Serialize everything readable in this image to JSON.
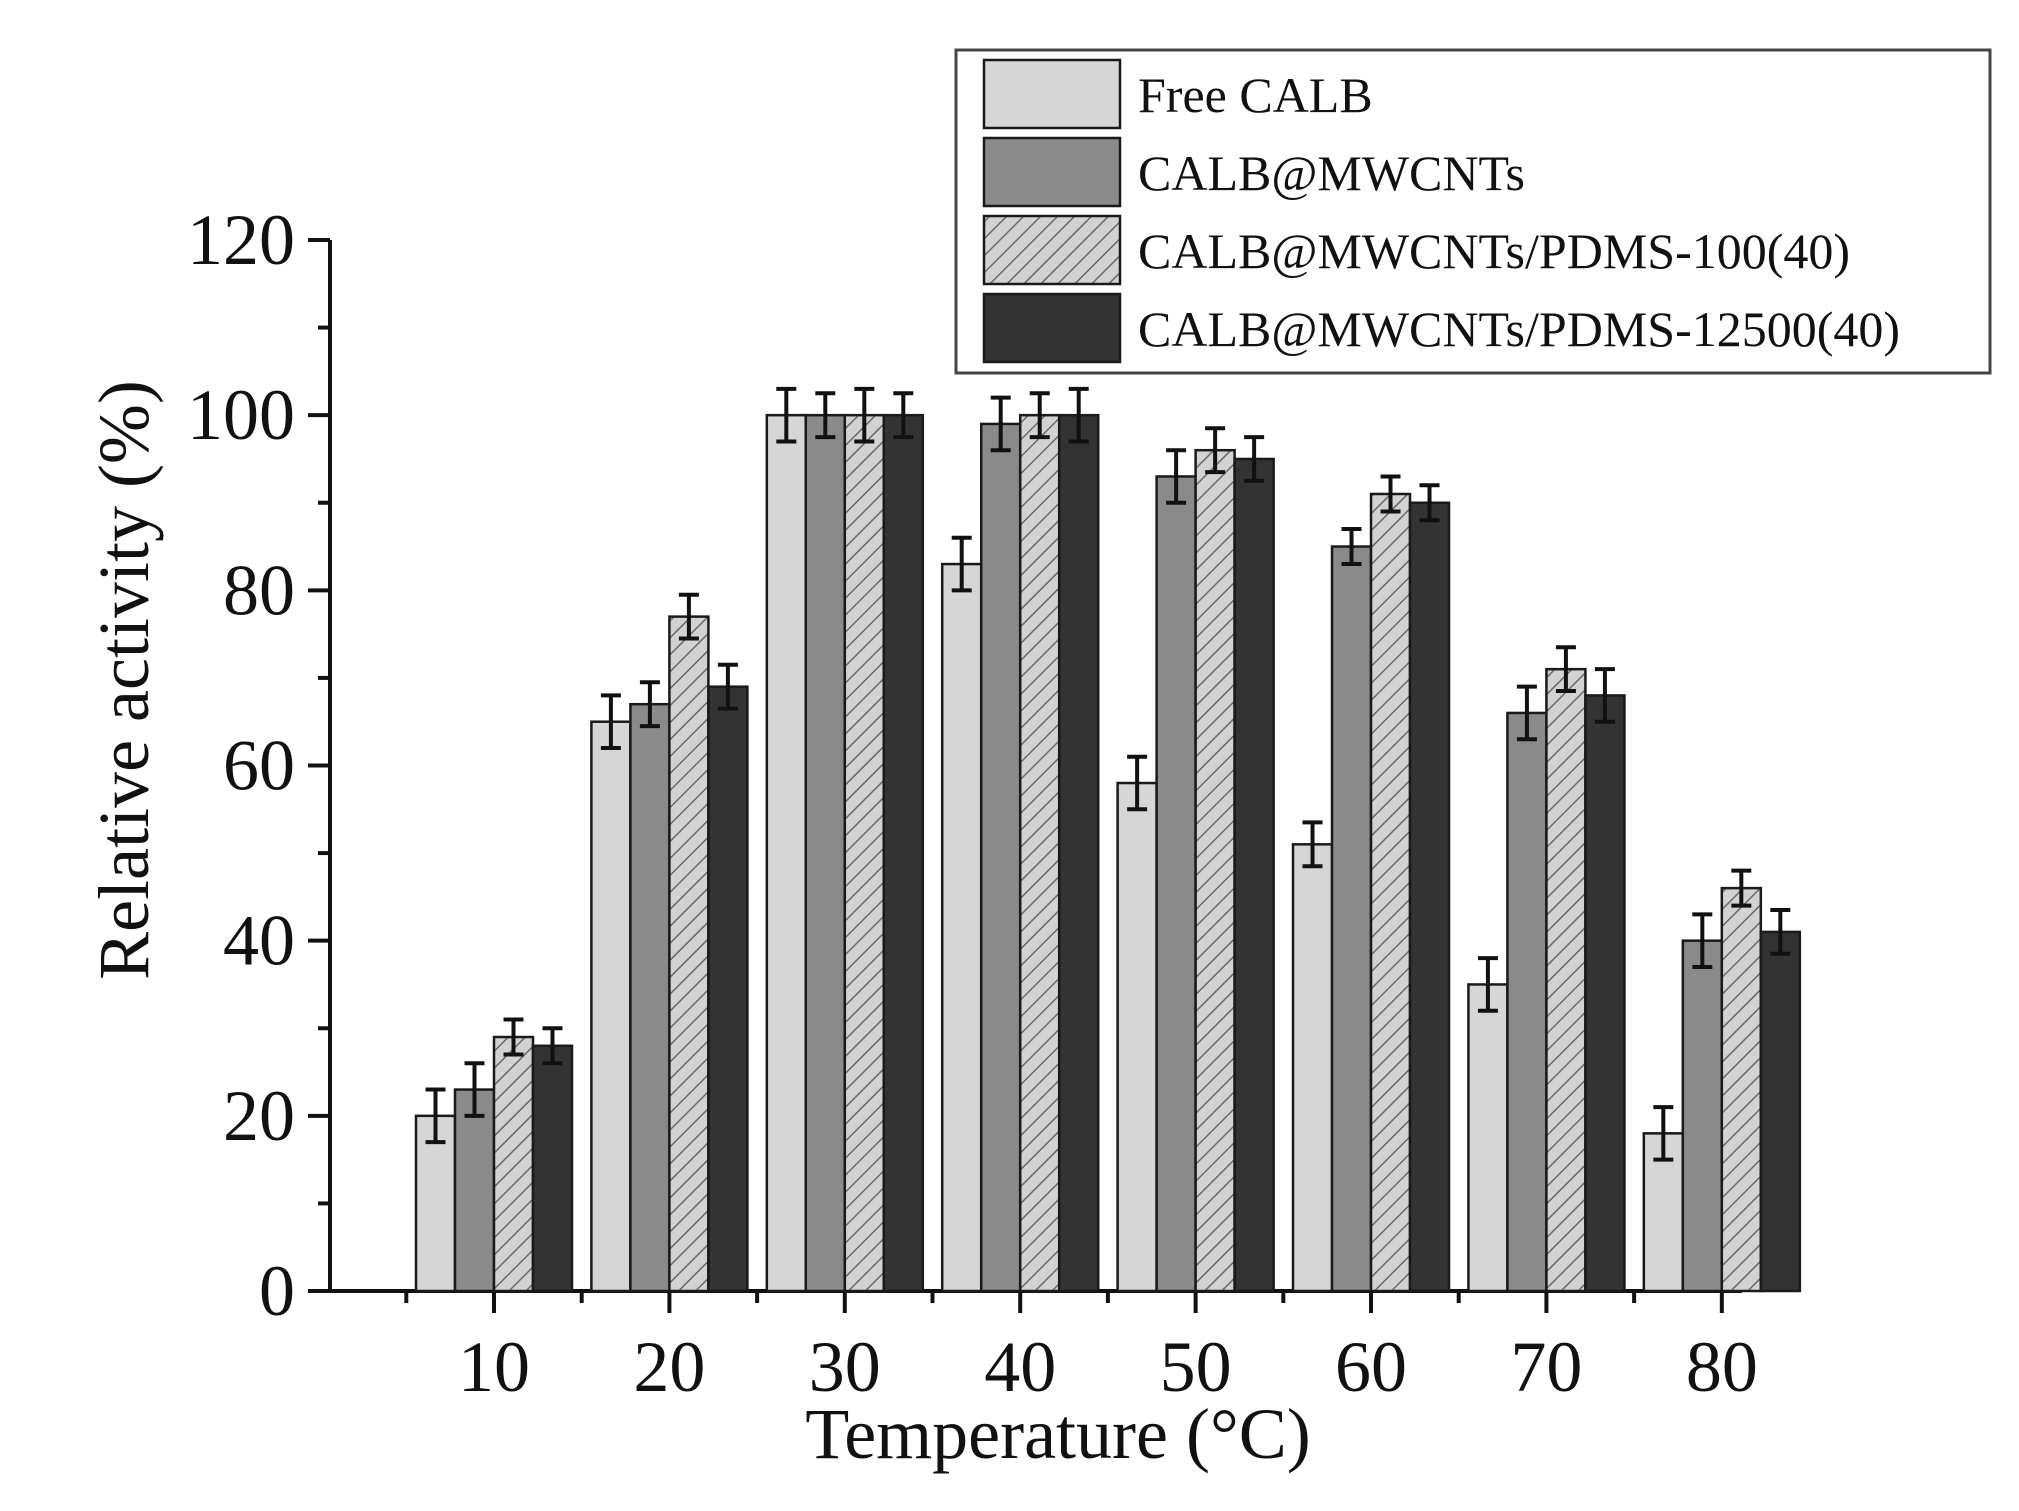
{
  "chart_data": {
    "type": "bar",
    "title": "",
    "xlabel": "Temperature (°C)",
    "ylabel": "Relative activity (%)",
    "ylim": [
      0,
      120
    ],
    "yticks": [
      "0",
      "20",
      "40",
      "60",
      "80",
      "100",
      "120"
    ],
    "categories": [
      "10",
      "20",
      "30",
      "40",
      "50",
      "60",
      "70",
      "80"
    ],
    "legend_position": "top-right",
    "series": [
      {
        "name": "Free CALB",
        "color": "#d6d6d6",
        "pattern": "solid",
        "values": [
          20,
          65,
          100,
          83,
          58,
          51,
          35,
          18
        ],
        "errors": [
          3,
          3,
          3,
          3,
          3,
          2.5,
          3,
          3
        ]
      },
      {
        "name": "CALB@MWCNTs",
        "color": "#8a8a8a",
        "pattern": "solid",
        "values": [
          23,
          67,
          100,
          99,
          93,
          85,
          66,
          40
        ],
        "errors": [
          3,
          2.5,
          2.5,
          3,
          3,
          2,
          3,
          3
        ]
      },
      {
        "name": "CALB@MWCNTs/PDMS-100(40)",
        "color": "#c8c8c8",
        "pattern": "hatch",
        "values": [
          29,
          77,
          100,
          100,
          96,
          91,
          71,
          46
        ],
        "errors": [
          2,
          2.5,
          3,
          2.5,
          2.5,
          2,
          2.5,
          2
        ]
      },
      {
        "name": "CALB@MWCNTs/PDMS-12500(40)",
        "color": "#333333",
        "pattern": "solid",
        "values": [
          28,
          69,
          100,
          100,
          95,
          90,
          68,
          41
        ],
        "errors": [
          2,
          2.5,
          2.5,
          3,
          2.5,
          2,
          3,
          2.5
        ]
      }
    ]
  }
}
